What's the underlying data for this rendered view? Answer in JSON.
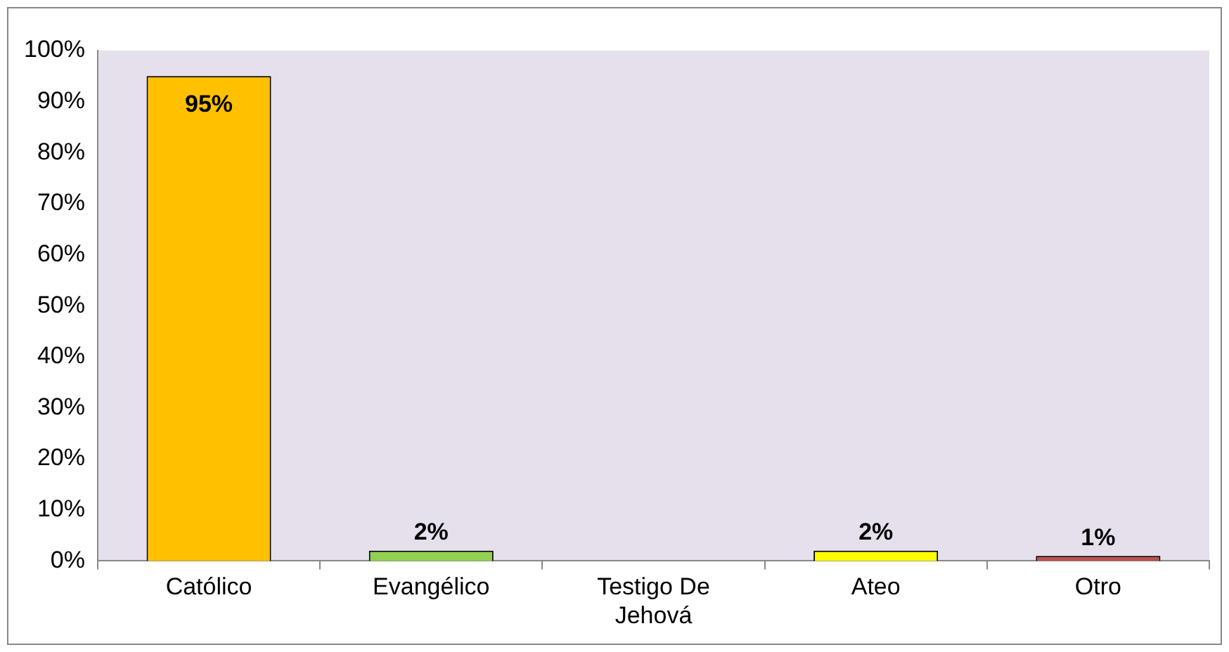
{
  "chart_data": {
    "type": "bar",
    "categories": [
      "Católico",
      "Evangélico",
      "Testigo De Jehová",
      "Ateo",
      "Otro"
    ],
    "values": [
      95,
      2,
      0,
      2,
      1
    ],
    "colors": [
      "#ffc000",
      "#92d050",
      "#8064a2",
      "#ffff00",
      "#c0504d"
    ],
    "value_labels": [
      "95%",
      "2%",
      null,
      "2%",
      "1%"
    ],
    "ylim": [
      0,
      100
    ],
    "yticks": [
      {
        "value": 0,
        "label": "0%"
      },
      {
        "value": 10,
        "label": "10%"
      },
      {
        "value": 20,
        "label": "20%"
      },
      {
        "value": 30,
        "label": "30%"
      },
      {
        "value": 40,
        "label": "40%"
      },
      {
        "value": 50,
        "label": "50%"
      },
      {
        "value": 60,
        "label": "60%"
      },
      {
        "value": 70,
        "label": "70%"
      },
      {
        "value": 80,
        "label": "80%"
      },
      {
        "value": 90,
        "label": "90%"
      },
      {
        "value": 100,
        "label": "100%"
      }
    ],
    "grid": false,
    "legend": false
  }
}
